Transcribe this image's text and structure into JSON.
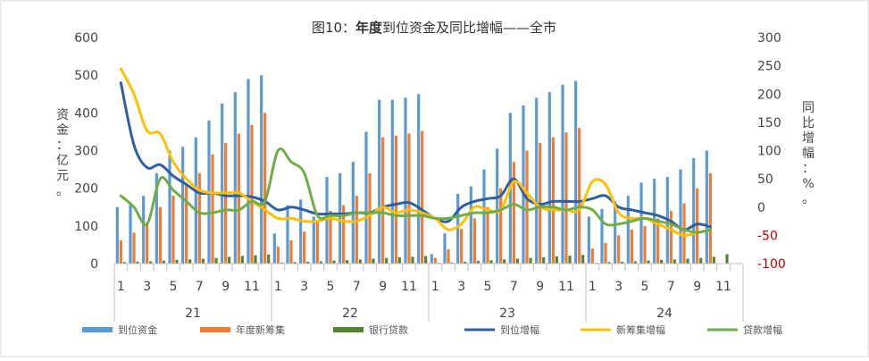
{
  "chart_data": {
    "type": "bar",
    "title_prefix": "图10：",
    "title_bold": "年度",
    "title_rest": "到位资金及同比增幅——全市",
    "ylabel_left": "资金：亿元。",
    "ylabel_right": "同比增幅：%。",
    "left_ylim": [
      0,
      600
    ],
    "left_ticks": [
      0,
      100,
      200,
      300,
      400,
      500,
      600
    ],
    "right_ylim": [
      -100,
      300
    ],
    "right_ticks": [
      -100,
      -50,
      0,
      50,
      100,
      150,
      200,
      250,
      300
    ],
    "negative_tick_color": "#c00000",
    "x_month_labels": [
      "1",
      "",
      "3",
      "",
      "5",
      "",
      "7",
      "",
      "9",
      "",
      "11",
      "",
      "1",
      "",
      "3",
      "",
      "5",
      "",
      "7",
      "",
      "9",
      "",
      "11",
      "",
      "1",
      "",
      "3",
      "",
      "5",
      "",
      "7",
      "",
      "9",
      "",
      "11",
      "",
      "1",
      "",
      "3",
      "",
      "5",
      "",
      "7",
      "",
      "9",
      "",
      "11",
      ""
    ],
    "groups": [
      "21",
      "22",
      "23",
      "24"
    ],
    "series": [
      {
        "name": "到位资金",
        "kind": "bar",
        "axis": "left",
        "color": "#5b9bd5",
        "values": [
          150,
          160,
          180,
          240,
          300,
          310,
          335,
          380,
          425,
          455,
          490,
          500,
          80,
          155,
          170,
          125,
          230,
          240,
          270,
          350,
          435,
          435,
          440,
          450,
          25,
          80,
          185,
          205,
          250,
          305,
          400,
          420,
          440,
          455,
          475,
          485,
          125,
          145,
          165,
          180,
          215,
          225,
          230,
          250,
          280,
          300,
          null,
          null
        ]
      },
      {
        "name": "年度新筹集",
        "kind": "bar",
        "axis": "left",
        "color": "#ed7d31",
        "values": [
          62,
          82,
          110,
          150,
          180,
          210,
          240,
          290,
          320,
          345,
          368,
          400,
          45,
          62,
          85,
          110,
          140,
          155,
          180,
          240,
          335,
          340,
          345,
          352,
          15,
          38,
          92,
          120,
          150,
          200,
          270,
          300,
          320,
          335,
          348,
          360,
          40,
          55,
          75,
          90,
          100,
          120,
          140,
          160,
          200,
          240,
          null,
          null
        ]
      },
      {
        "name": "银行贷款",
        "kind": "bar",
        "axis": "left",
        "color": "#548235",
        "values": [
          4,
          5,
          6,
          8,
          10,
          11,
          13,
          15,
          18,
          20,
          22,
          24,
          3,
          4,
          5,
          6,
          8,
          9,
          11,
          13,
          15,
          17,
          18,
          20,
          2,
          3,
          5,
          7,
          9,
          11,
          13,
          15,
          17,
          19,
          21,
          23,
          2,
          4,
          5,
          6,
          8,
          10,
          11,
          13,
          15,
          18,
          25,
          null
        ]
      },
      {
        "name": "到位增幅",
        "kind": "line",
        "axis": "right",
        "color": "#2e5fa3",
        "values": [
          220,
          110,
          70,
          75,
          55,
          40,
          25,
          25,
          20,
          20,
          18,
          10,
          -5,
          0,
          -5,
          -12,
          -12,
          -12,
          -10,
          -10,
          0,
          5,
          8,
          -5,
          -20,
          -25,
          0,
          10,
          15,
          20,
          50,
          15,
          5,
          10,
          10,
          10,
          15,
          20,
          0,
          -5,
          -10,
          -15,
          -25,
          -40,
          -30,
          -35,
          null,
          null
        ]
      },
      {
        "name": "新筹集增幅",
        "kind": "line",
        "axis": "right",
        "color": "#ffc000",
        "values": [
          245,
          200,
          135,
          130,
          80,
          50,
          30,
          25,
          25,
          25,
          10,
          -5,
          -20,
          -20,
          -25,
          -25,
          -20,
          -25,
          -25,
          -15,
          0,
          -10,
          -5,
          -10,
          -20,
          -40,
          -30,
          0,
          -5,
          -5,
          45,
          25,
          0,
          -5,
          -5,
          -5,
          45,
          40,
          -10,
          -20,
          -20,
          -30,
          -40,
          -50,
          -45,
          -40,
          null,
          null
        ]
      },
      {
        "name": "贷款增幅",
        "kind": "line",
        "axis": "right",
        "color": "#70ad47",
        "values": [
          20,
          0,
          -30,
          50,
          30,
          10,
          -10,
          -10,
          -5,
          -5,
          10,
          10,
          100,
          80,
          60,
          -15,
          -15,
          -15,
          -10,
          -10,
          -10,
          -15,
          -15,
          -15,
          -20,
          -20,
          -15,
          -10,
          -10,
          -5,
          5,
          -5,
          0,
          0,
          -5,
          0,
          -5,
          -30,
          -30,
          -25,
          -20,
          -25,
          -30,
          -40,
          -45,
          -40,
          null,
          null
        ]
      }
    ],
    "legend_position": "bottom",
    "grid": false
  }
}
